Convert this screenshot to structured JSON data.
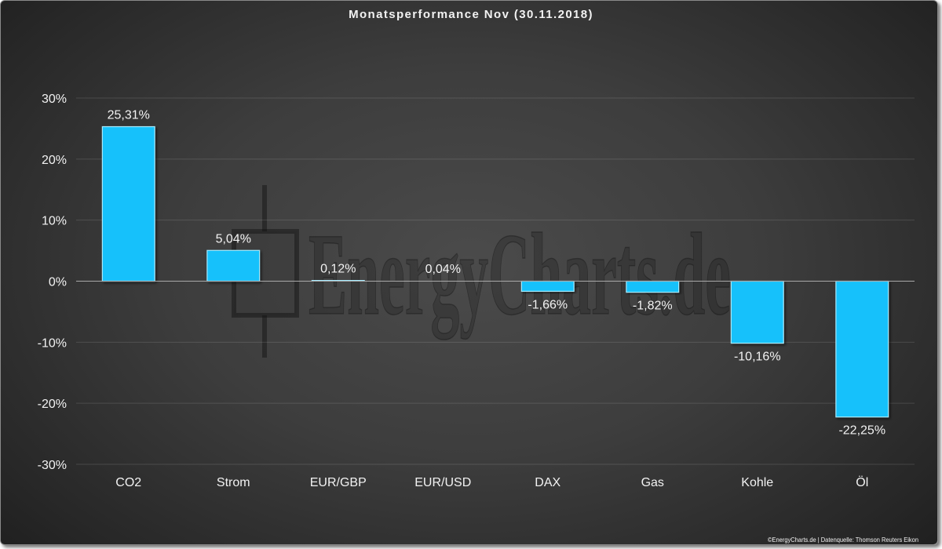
{
  "chart_data": {
    "type": "bar",
    "title": "Monatsperformance Nov (30.11.2018)",
    "categories": [
      "CO2",
      "Strom",
      "EUR/GBP",
      "EUR/USD",
      "DAX",
      "Gas",
      "Kohle",
      "Öl"
    ],
    "values": [
      25.31,
      5.04,
      0.12,
      0.04,
      -1.66,
      -1.82,
      -10.16,
      -22.25
    ],
    "data_labels": [
      "25,31%",
      "5,04%",
      "0,12%",
      "0,04%",
      "-1,66%",
      "-1,82%",
      "-10,16%",
      "-22,25%"
    ],
    "ylim": [
      -30,
      30
    ],
    "y_tick_values": [
      30,
      20,
      10,
      0,
      -10,
      -20,
      -30
    ],
    "y_tick_labels": [
      "30%",
      "20%",
      "10%",
      "0%",
      "-10%",
      "-20%",
      "-30%"
    ],
    "grid": true,
    "legend": "none",
    "bar_color": "#17c1fb"
  },
  "watermark": "EnergyCharts.de",
  "footer": "©EnergyCharts.de | Datenquelle: Thomson Reuters Eikon"
}
